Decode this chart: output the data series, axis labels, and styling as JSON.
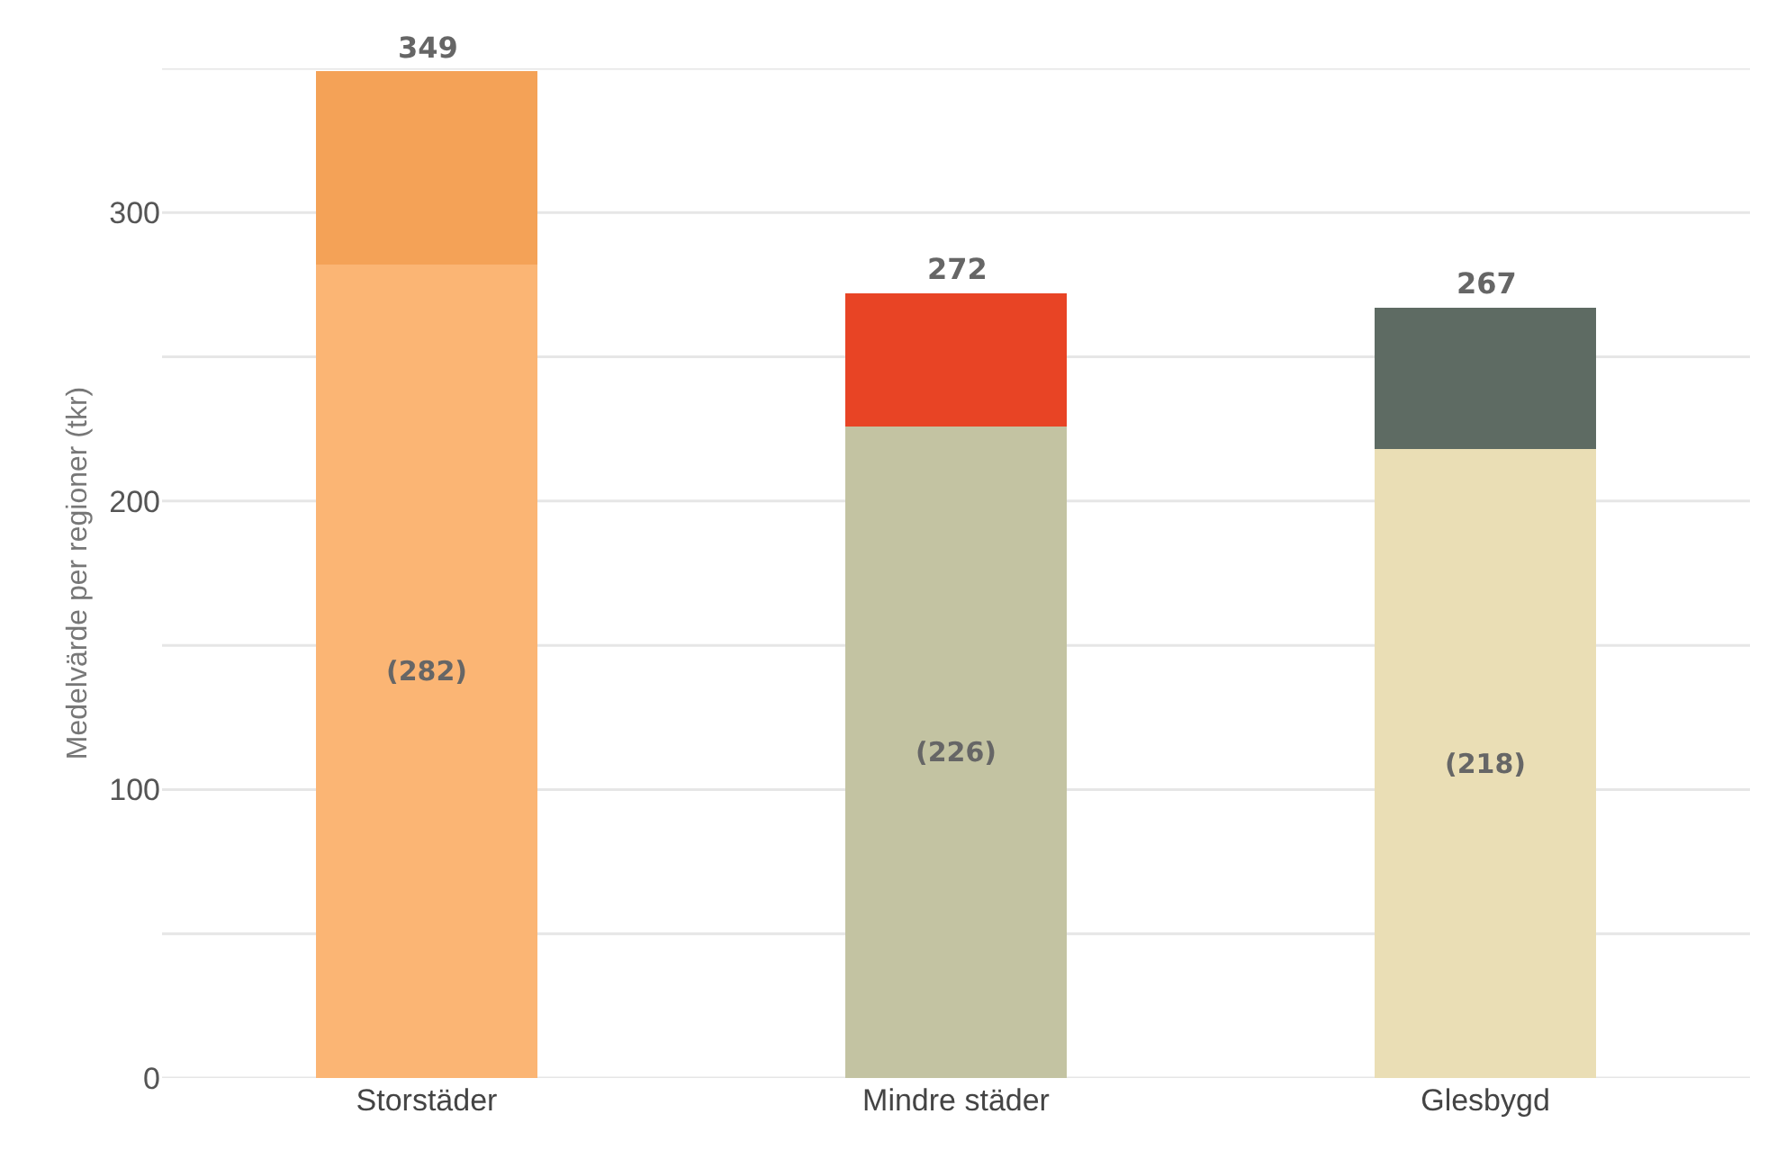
{
  "chart_data": {
    "type": "bar",
    "stacked": true,
    "ylabel": "Medelvärde per regioner (tkr)",
    "categories": [
      "Storstäder",
      "Mindre städer",
      "Glesbygd"
    ],
    "series": [
      {
        "colors": [
          "#fbb574",
          "#c3c3a2",
          "#eadeb5"
        ],
        "values": [
          282,
          226,
          218
        ],
        "value_labels": [
          "(282)",
          "(226)",
          "(218)"
        ]
      },
      {
        "colors": [
          "#f4a257",
          "#e84425",
          "#5e6b63"
        ],
        "values": [
          67,
          46,
          49
        ]
      }
    ],
    "totals": [
      "349",
      "272",
      "267"
    ],
    "ylim": [
      0,
      350
    ],
    "yticks": [
      0,
      {
        "value": 50,
        "label": null
      },
      100,
      {
        "value": 150,
        "label": null
      },
      200,
      {
        "value": 250,
        "label": null
      },
      300,
      {
        "value": 350,
        "label": null
      }
    ],
    "grid": "y"
  }
}
